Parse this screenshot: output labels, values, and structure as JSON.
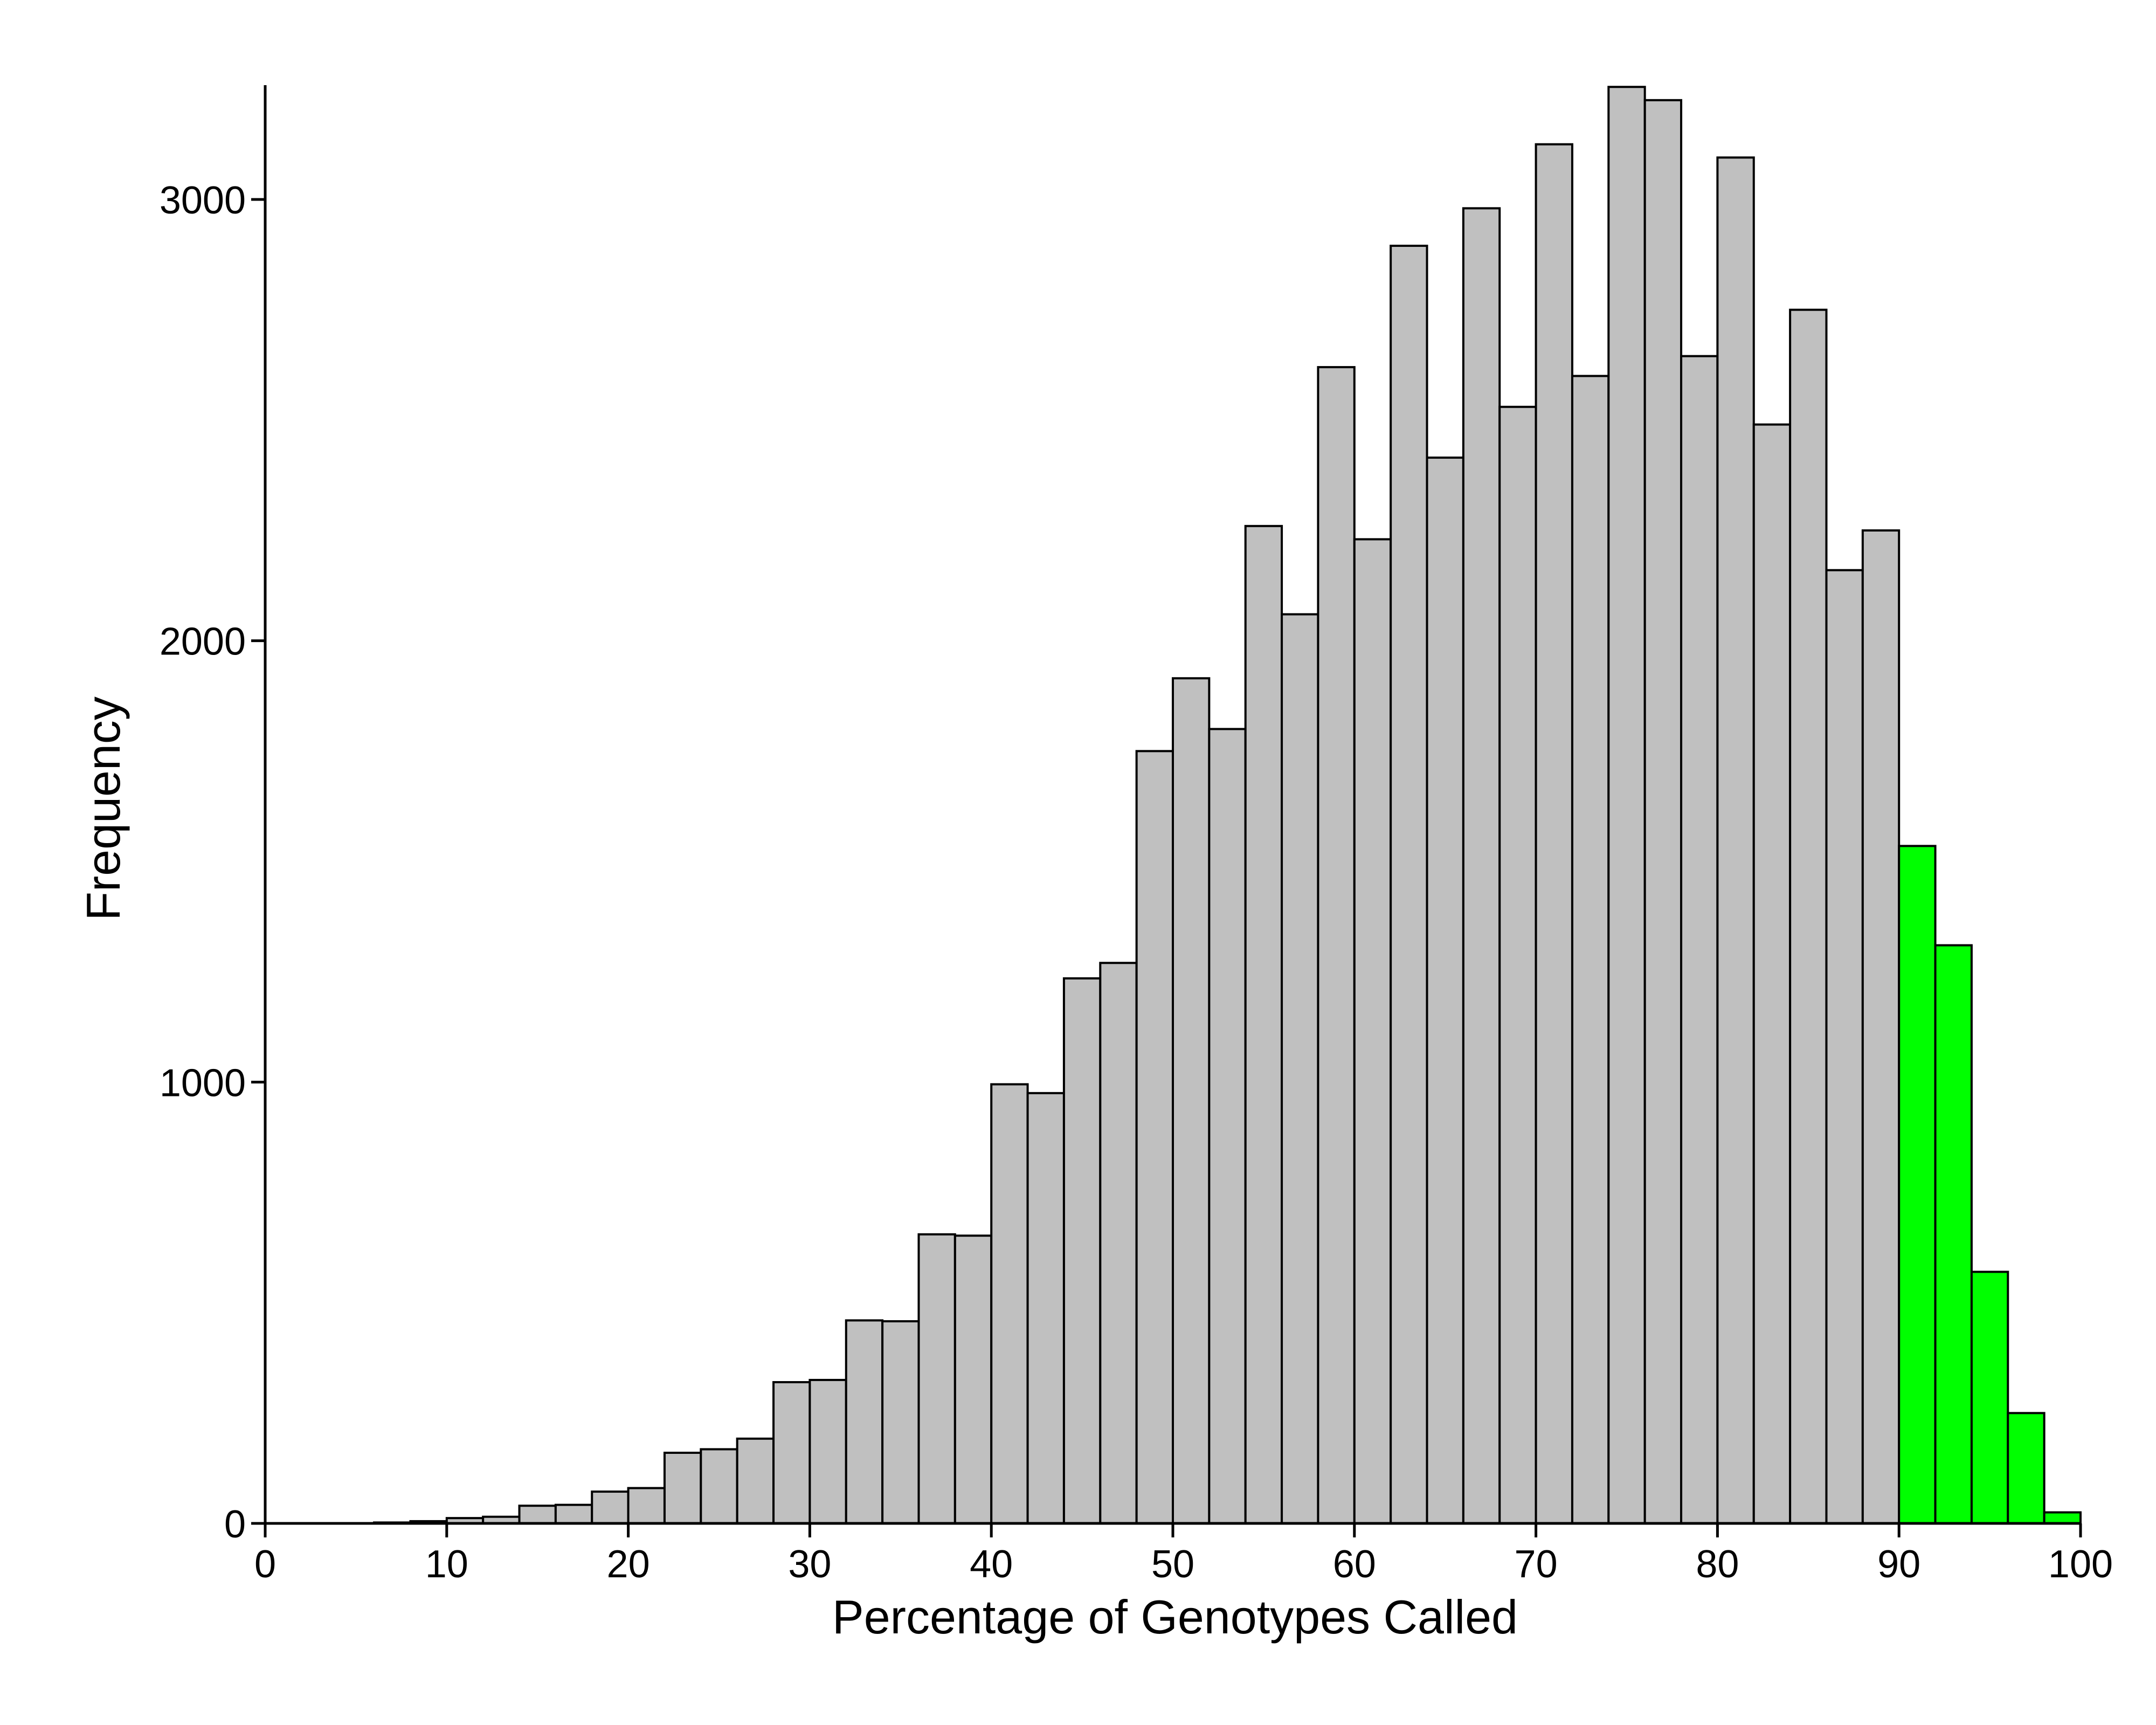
{
  "chart_data": {
    "type": "bar",
    "subtype": "histogram",
    "title": "",
    "xlabel": "Percentage of Genotypes Called",
    "ylabel": "Frequency",
    "xlim": [
      0,
      100
    ],
    "ylim": [
      0,
      3260
    ],
    "bin_width": 2,
    "bin_starts": [
      0,
      2,
      4,
      6,
      8,
      10,
      12,
      14,
      16,
      18,
      20,
      22,
      24,
      26,
      28,
      30,
      32,
      34,
      36,
      38,
      40,
      42,
      44,
      46,
      48,
      50,
      52,
      54,
      56,
      58,
      60,
      62,
      64,
      66,
      68,
      70,
      72,
      74,
      76,
      78,
      80,
      82,
      84,
      86,
      88,
      90,
      92,
      94,
      96,
      98
    ],
    "values": [
      0,
      0,
      0,
      2,
      5,
      12,
      15,
      40,
      42,
      72,
      80,
      160,
      168,
      192,
      320,
      325,
      460,
      458,
      655,
      652,
      995,
      975,
      1235,
      1270,
      1750,
      1915,
      1800,
      2260,
      2060,
      2620,
      2230,
      2895,
      2415,
      2980,
      2530,
      3125,
      2600,
      3255,
      3225,
      2645,
      3095,
      2490,
      2750,
      2160,
      2250,
      1535,
      1310,
      570,
      250,
      25
    ],
    "x_ticks": [
      0,
      10,
      20,
      30,
      40,
      50,
      60,
      70,
      80,
      90,
      100
    ],
    "x_tick_labels": [
      "0",
      "10",
      "20",
      "30",
      "40",
      "50",
      "60",
      "70",
      "80",
      "90",
      "100"
    ],
    "y_ticks": [
      0,
      1000,
      2000,
      3000
    ],
    "y_tick_labels": [
      "0",
      "1000",
      "2000",
      "3000"
    ],
    "highlight_from": 90,
    "colors": {
      "default": "#c0c0c0",
      "highlight": "#00ff00",
      "edge": "#000000"
    },
    "grid": false,
    "legend": "none"
  }
}
